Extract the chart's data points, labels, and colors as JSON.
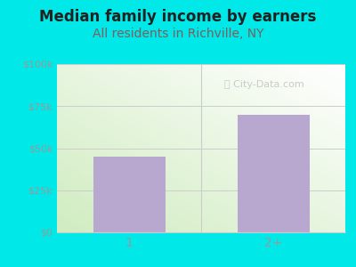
{
  "categories": [
    "1",
    "2+"
  ],
  "values": [
    45000,
    70000
  ],
  "bar_color": "#b8a8d0",
  "title": "Median family income by earners",
  "subtitle": "All residents in Richville, NY",
  "title_color": "#222222",
  "subtitle_color": "#7a6060",
  "bg_color": "#00e8e8",
  "yticks": [
    0,
    25000,
    50000,
    75000,
    100000
  ],
  "ytick_labels": [
    "$0",
    "$25k",
    "$50k",
    "$75k",
    "$100k"
  ],
  "ylim": [
    0,
    100000
  ],
  "watermark": "City-Data.com",
  "title_fontsize": 12,
  "subtitle_fontsize": 10,
  "tick_color": "#999999",
  "grid_color": "#cccccc"
}
